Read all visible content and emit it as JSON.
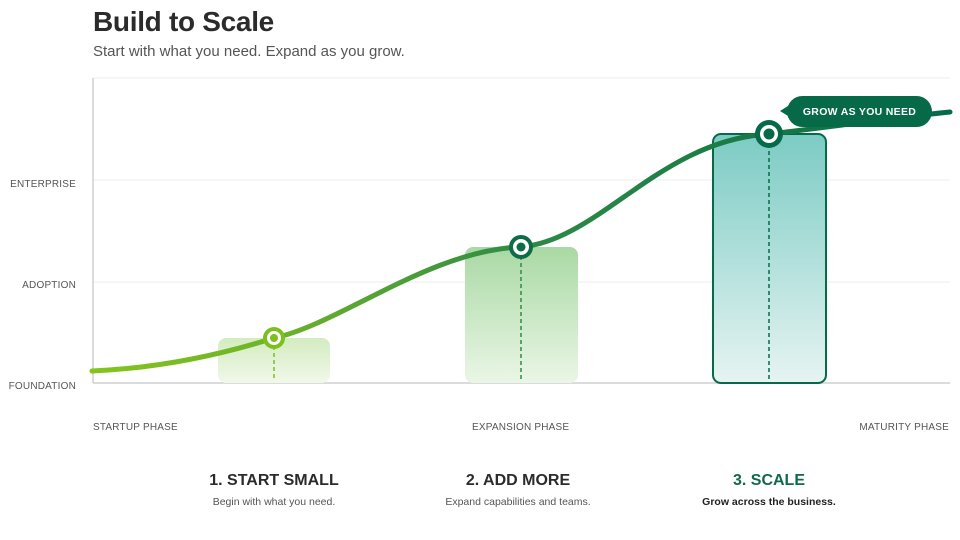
{
  "header": {
    "title": "Build to Scale",
    "subtitle": "Start with what you need. Expand as you grow."
  },
  "levels": [
    "ENTERPRISE",
    "ADOPTION",
    "FOUNDATION"
  ],
  "phases": [
    "STARTUP PHASE",
    "EXPANSION PHASE",
    "MATURITY PHASE"
  ],
  "callout": {
    "label": "GROW AS YOU NEED"
  },
  "steps": [
    {
      "title": "1. START SMALL",
      "desc": "Begin with what you need."
    },
    {
      "title": "2. ADD MORE",
      "desc": "Expand capabilities and teams."
    },
    {
      "title": "3. SCALE",
      "desc": "Grow across the business."
    }
  ],
  "colors": {
    "accent_dark": "#066a48",
    "accent_mid": "#2e8b45",
    "accent_light": "#7cbf1e",
    "teal_fill": "#7ccbc4",
    "step_active": "#12684a"
  }
}
